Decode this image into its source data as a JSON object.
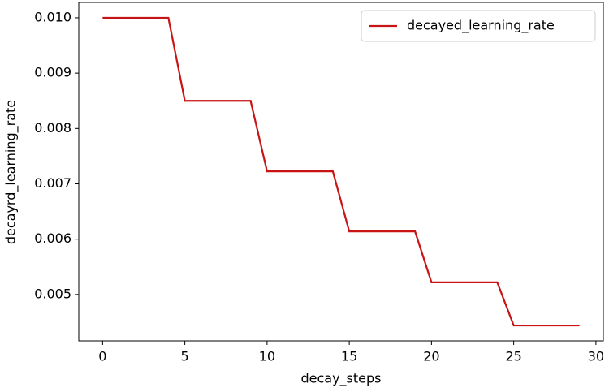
{
  "chart_data": {
    "type": "line",
    "x": [
      0,
      1,
      2,
      3,
      4,
      5,
      6,
      7,
      8,
      9,
      10,
      11,
      12,
      13,
      14,
      15,
      16,
      17,
      18,
      19,
      20,
      21,
      22,
      23,
      24,
      25,
      26,
      27,
      28,
      29
    ],
    "series": [
      {
        "name": "decayed_learning_rate",
        "color": "#c81414",
        "values": [
          0.01,
          0.01,
          0.01,
          0.01,
          0.01,
          0.0085,
          0.0085,
          0.0085,
          0.0085,
          0.0085,
          0.007225,
          0.007225,
          0.007225,
          0.007225,
          0.007225,
          0.00614,
          0.00614,
          0.00614,
          0.00614,
          0.00614,
          0.00522,
          0.00522,
          0.00522,
          0.00522,
          0.00522,
          0.00444,
          0.00444,
          0.00444,
          0.00444,
          0.00444
        ]
      }
    ],
    "x_label": "decay_steps",
    "y_label": "decayrd_learning_rate",
    "xlim": [
      -1.45,
      30.45
    ],
    "xticks": [
      0,
      5,
      10,
      15,
      20,
      25,
      30
    ],
    "ylim": [
      0.004162,
      0.010278
    ],
    "yticks": [
      0.005,
      0.006,
      0.007,
      0.008,
      0.009,
      {
        "value": 0.01,
        "label": "0.010"
      }
    ],
    "legend": "upper right"
  }
}
